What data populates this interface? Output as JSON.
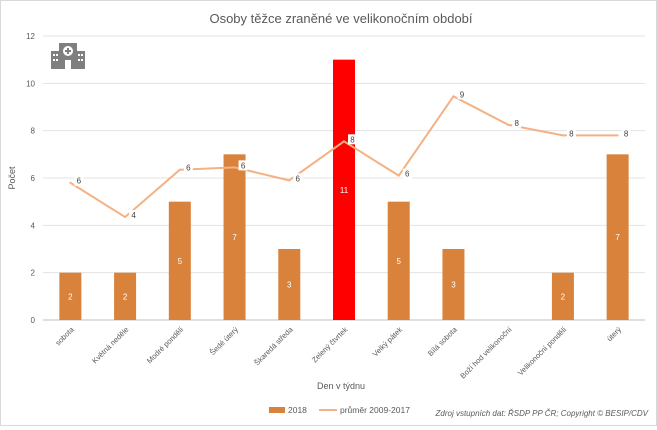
{
  "chart_data": {
    "type": "bar",
    "title": "Osoby těžce zraněné ve velikonočním období",
    "xlabel": "Den v týdnu",
    "ylabel": "Počet",
    "ylim": [
      0,
      12
    ],
    "yticks": [
      0,
      2,
      4,
      6,
      8,
      10,
      12
    ],
    "grid": true,
    "legend_position": "bottom",
    "categories": [
      "sobota",
      "Květná neděle",
      "Modré pondělí",
      "Šedé úterý",
      "Škaredá středa",
      "Zelený čtvrtek",
      "Velký pátek",
      "Bílá sobota",
      "Boží hod velikonoční",
      "Velikonoční pondělí",
      "úterý"
    ],
    "series": [
      {
        "name": "2018",
        "type": "bar",
        "color": "#d9823b",
        "highlight_color": "#ff0000",
        "highlight_index": 5,
        "values": [
          2,
          2,
          5,
          7,
          3,
          11,
          5,
          3,
          null,
          2,
          7
        ],
        "labels": [
          "2",
          "2",
          "5",
          "7",
          "3",
          "11",
          "5",
          "3",
          "",
          "2",
          "7"
        ]
      },
      {
        "name": "průměr 2009-2017",
        "type": "line",
        "color": "#f4b183",
        "values": [
          5.8,
          4.35,
          6.35,
          6.45,
          5.9,
          7.55,
          6.1,
          9.45,
          8.25,
          7.8,
          7.8
        ],
        "labels": [
          "6",
          "4",
          "6",
          "6",
          "6",
          "8",
          "6",
          "9",
          "8",
          "8",
          "8"
        ]
      }
    ],
    "source": "Zdroj vstupních dat: ŘSDP PP ČR; Copyright © BESIP/CDV",
    "icon": "hospital-icon"
  }
}
